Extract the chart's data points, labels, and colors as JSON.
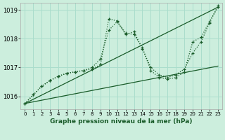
{
  "title": "Graphe pression niveau de la mer (hPa)",
  "background_color": "#cceedd",
  "grid_color": "#aaddcc",
  "line_color": "#1a5c2a",
  "xlim": [
    -0.5,
    23.5
  ],
  "ylim": [
    1015.55,
    1019.25
  ],
  "yticks": [
    1016,
    1017,
    1018,
    1019
  ],
  "xticks": [
    0,
    1,
    2,
    3,
    4,
    5,
    6,
    7,
    8,
    9,
    10,
    11,
    12,
    13,
    14,
    15,
    16,
    17,
    18,
    19,
    20,
    21,
    22,
    23
  ],
  "lines": [
    {
      "x": [
        0,
        23
      ],
      "y": [
        1015.75,
        1017.05
      ],
      "marker": null,
      "lw": 0.9,
      "ls": "-"
    },
    {
      "x": [
        0,
        23
      ],
      "y": [
        1015.75,
        1019.1
      ],
      "marker": null,
      "lw": 0.9,
      "ls": "-"
    },
    {
      "x": [
        0,
        1,
        2,
        3,
        4,
        5,
        6,
        7,
        8,
        9,
        10,
        11,
        12,
        13,
        14,
        15,
        16,
        17,
        18,
        19,
        20,
        21,
        22,
        23
      ],
      "y": [
        1015.75,
        1016.05,
        1016.35,
        1016.55,
        1016.7,
        1016.8,
        1016.85,
        1016.9,
        1016.95,
        1017.1,
        1018.7,
        1018.62,
        1018.2,
        1018.15,
        1017.7,
        1016.9,
        1016.65,
        1016.6,
        1016.65,
        1016.85,
        1017.9,
        1018.05,
        1018.6,
        1019.1
      ],
      "marker": "+",
      "lw": 0.9,
      "ls": ":"
    },
    {
      "x": [
        0,
        1,
        2,
        3,
        4,
        5,
        6,
        7,
        8,
        9,
        10,
        11,
        12,
        13,
        14,
        15,
        16,
        17,
        18,
        19,
        20,
        21,
        22,
        23
      ],
      "y": [
        1015.75,
        1016.05,
        1016.35,
        1016.55,
        1016.7,
        1016.8,
        1016.85,
        1016.9,
        1017.0,
        1017.3,
        1018.3,
        1018.6,
        1018.15,
        1018.25,
        1017.65,
        1017.0,
        1016.75,
        1016.65,
        1016.75,
        1016.95,
        1017.5,
        1017.9,
        1018.55,
        1019.15
      ],
      "marker": "+",
      "lw": 0.9,
      "ls": ":"
    }
  ]
}
